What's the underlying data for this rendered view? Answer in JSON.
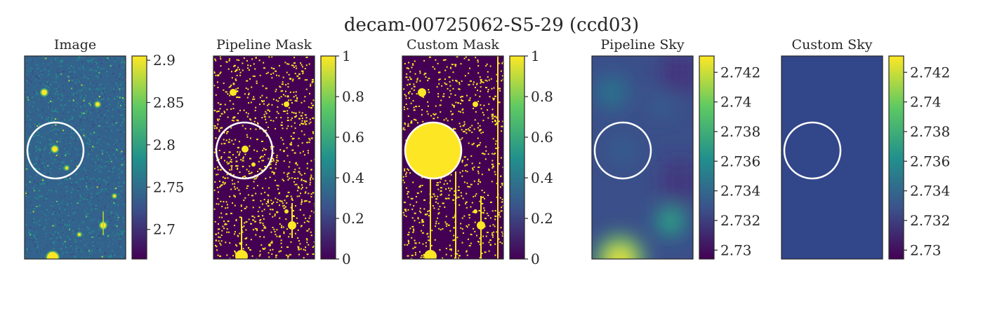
{
  "figure": {
    "title": "decam-00725062-S5-29 (ccd03)"
  },
  "colormap": {
    "name": "viridis",
    "stops": [
      "#440154",
      "#3b528b",
      "#21918c",
      "#5ec962",
      "#fde725"
    ]
  },
  "chart_data": [
    {
      "type": "heatmap",
      "title": "Image",
      "content": "star field with circle aperture",
      "colorbar": {
        "range": [
          2.665,
          2.905
        ],
        "ticks": [
          "2.7",
          "2.75",
          "2.8",
          "2.85",
          "2.9"
        ],
        "tick_values": [
          2.7,
          2.75,
          2.8,
          2.85,
          2.9
        ]
      },
      "circle": true
    },
    {
      "type": "heatmap",
      "title": "Pipeline Mask",
      "content": "binary mask of detected sources",
      "colorbar": {
        "range": [
          0,
          1
        ],
        "ticks": [
          "0",
          "0.2",
          "0.4",
          "0.6",
          "0.8",
          "1"
        ],
        "tick_values": [
          0,
          0.2,
          0.4,
          0.6,
          0.8,
          1
        ]
      },
      "circle": true
    },
    {
      "type": "heatmap",
      "title": "Custom Mask",
      "content": "binary mask with large masked circle",
      "colorbar": {
        "range": [
          0,
          1
        ],
        "ticks": [
          "0",
          "0.2",
          "0.4",
          "0.6",
          "0.8",
          "1"
        ],
        "tick_values": [
          0,
          0.2,
          0.4,
          0.6,
          0.8,
          1
        ]
      },
      "circle": true
    },
    {
      "type": "heatmap",
      "title": "Pipeline Sky",
      "content": "smooth sky background model",
      "colorbar": {
        "range": [
          2.7294,
          2.7431
        ],
        "ticks": [
          "2.73",
          "2.732",
          "2.734",
          "2.736",
          "2.738",
          "2.74",
          "2.742"
        ],
        "tick_values": [
          2.73,
          2.732,
          2.734,
          2.736,
          2.738,
          2.74,
          2.742
        ]
      },
      "circle": true
    },
    {
      "type": "heatmap",
      "title": "Custom Sky",
      "content": "constant sky value",
      "colorbar": {
        "range": [
          2.7294,
          2.7431
        ],
        "ticks": [
          "2.73",
          "2.732",
          "2.734",
          "2.736",
          "2.738",
          "2.74",
          "2.742"
        ],
        "tick_values": [
          2.73,
          2.732,
          2.734,
          2.736,
          2.738,
          2.74,
          2.742
        ]
      },
      "circle": true
    }
  ]
}
